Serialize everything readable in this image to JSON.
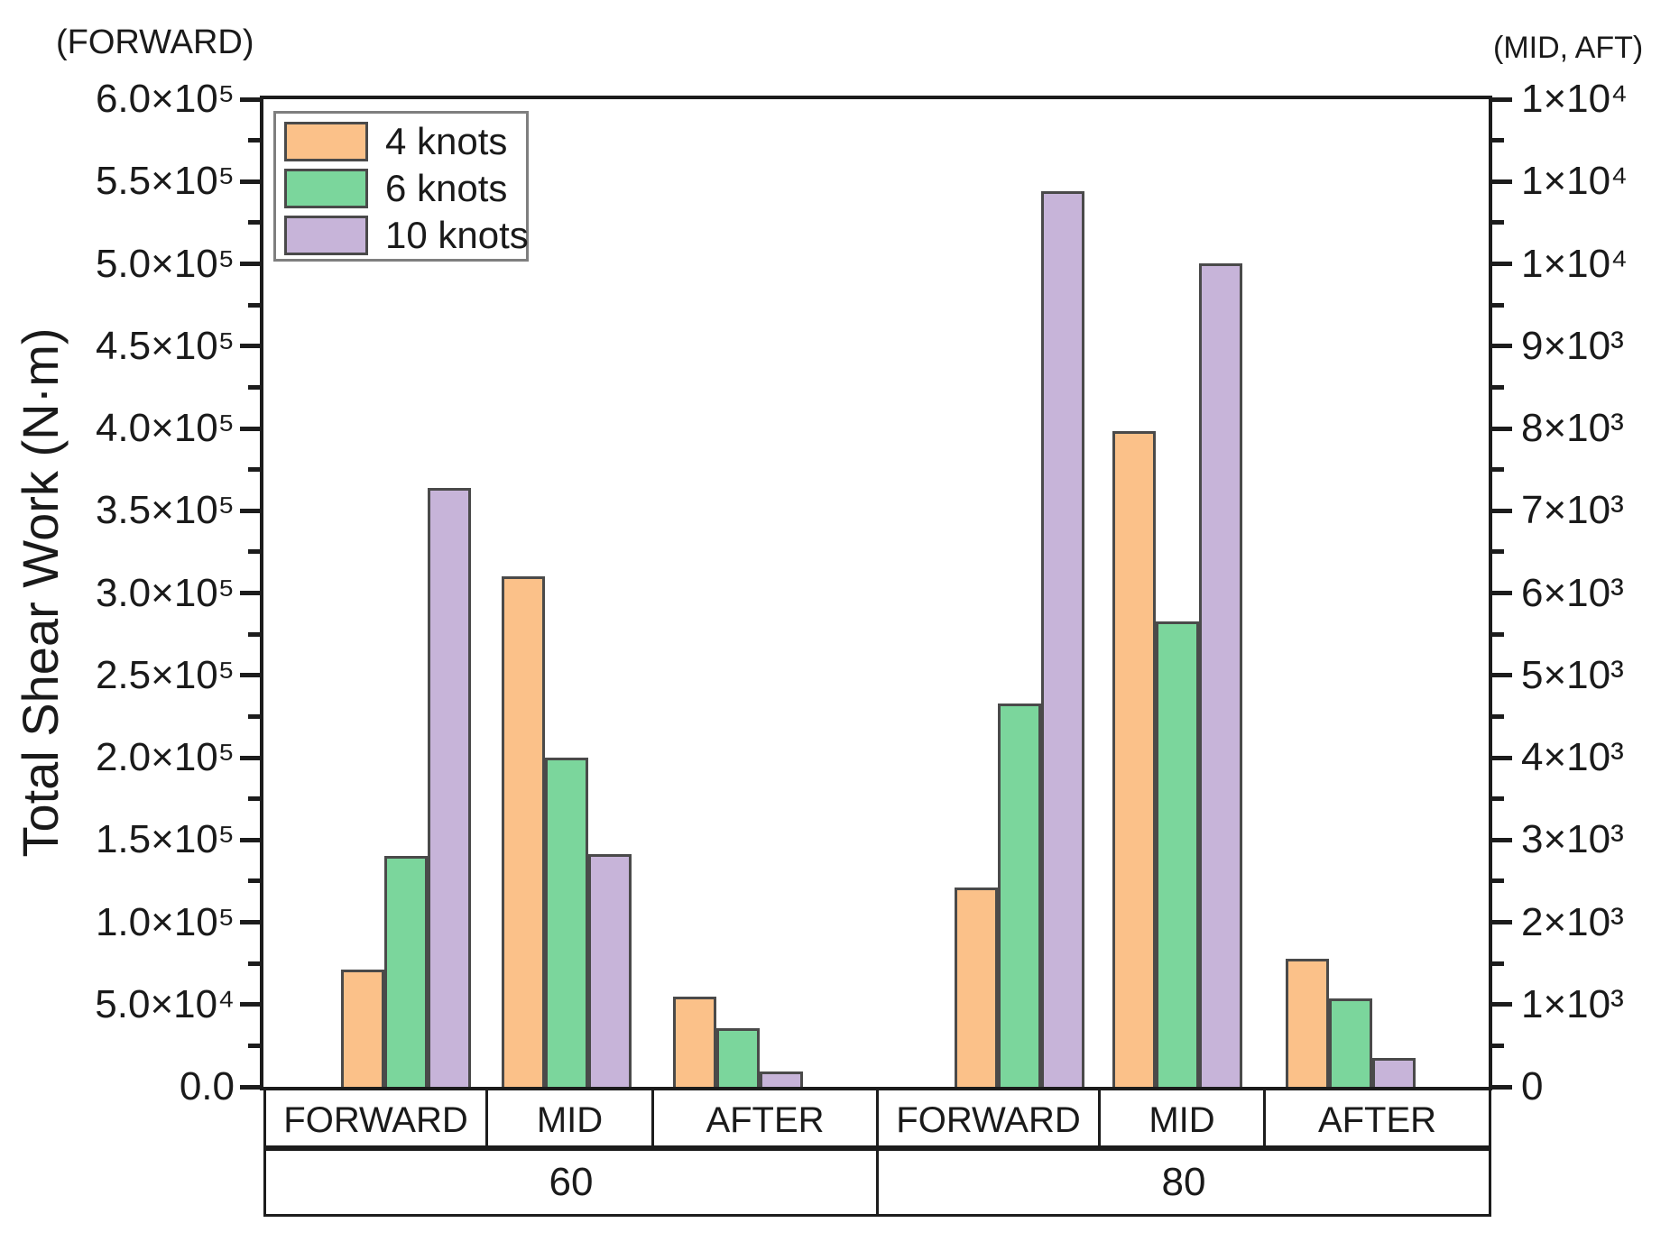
{
  "figure": {
    "left_axis_caption": "(FORWARD)",
    "right_axis_caption": "(MID, AFT)",
    "y_axis_title": "Total Shear Work (N·m)"
  },
  "chart_data": {
    "type": "bar",
    "title": "",
    "ylabel": "Total Shear Work (N·m)",
    "grid": "off",
    "left_axis": {
      "applies_to": "FORWARD bars",
      "min": 0,
      "max": 600000,
      "caption": "(FORWARD)",
      "tick_labels": [
        "6.0×10⁵",
        "5.5×10⁵",
        "5.0×10⁵",
        "4.5×10⁵",
        "4.0×10⁵",
        "3.5×10⁵",
        "3.0×10⁵",
        "2.5×10⁵",
        "2.0×10⁵",
        "1.5×10⁵",
        "1.0×10⁵",
        "5.0×10⁴",
        "0.0"
      ]
    },
    "right_axis": {
      "applies_to": "MID and AFTER bars",
      "min": 0,
      "max": 12000,
      "caption": "(MID, AFT)",
      "tick_labels": [
        "1×10⁴",
        "1×10⁴",
        "1×10⁴",
        "9×10³",
        "8×10³",
        "7×10³",
        "6×10³",
        "5×10³",
        "4×10³",
        "3×10³",
        "2×10³",
        "1×10³",
        "0"
      ]
    },
    "legend": {
      "position": "top-left",
      "series": [
        {
          "name": "4 knots",
          "color": "#FBC189"
        },
        {
          "name": "6 knots",
          "color": "#7BD69C"
        },
        {
          "name": "10 knots",
          "color": "#C7B4D9"
        }
      ]
    },
    "x_row1_labels": [
      "FORWARD",
      "MID",
      "AFTER",
      "FORWARD",
      "MID",
      "AFTER"
    ],
    "x_row2_labels": [
      "60",
      "80"
    ],
    "groups": [
      {
        "speed": "60",
        "station": "FORWARD",
        "axis": "left",
        "values": [
          71000,
          140000,
          364000
        ]
      },
      {
        "speed": "60",
        "station": "MID",
        "axis": "right",
        "values": [
          6200,
          4000,
          2830
        ]
      },
      {
        "speed": "60",
        "station": "AFTER",
        "axis": "right",
        "values": [
          1100,
          710,
          190
        ]
      },
      {
        "speed": "80",
        "station": "FORWARD",
        "axis": "left",
        "values": [
          121000,
          233000,
          544000
        ]
      },
      {
        "speed": "80",
        "station": "MID",
        "axis": "right",
        "values": [
          7970,
          5650,
          10000
        ]
      },
      {
        "speed": "80",
        "station": "AFTER",
        "axis": "right",
        "values": [
          1560,
          1070,
          350
        ]
      }
    ]
  }
}
